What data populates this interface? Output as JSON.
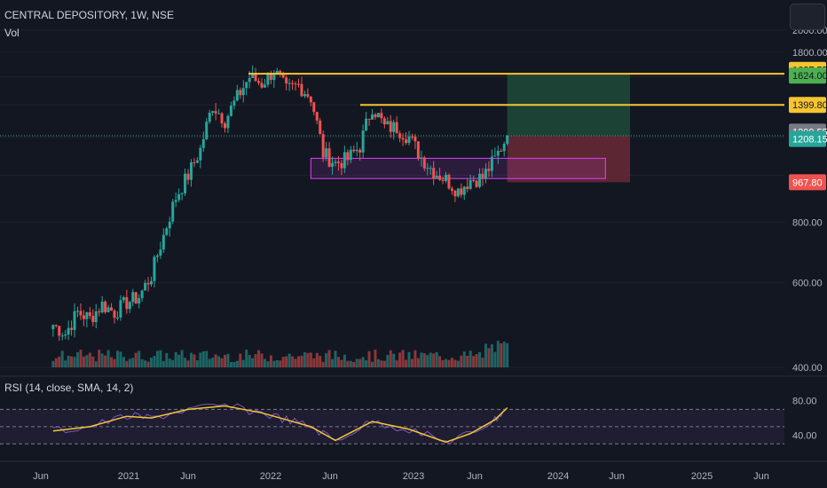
{
  "header": {
    "symbol_line": "CENTRAL DEPOSITORY, 1W, NSE",
    "volume_label": "Vol",
    "rsi_label": "RSI (14, close, SMA, 14, 2)"
  },
  "colors": {
    "background": "#131722",
    "up": "#26a69a",
    "down": "#ef5350",
    "level_line": "#f7c531",
    "rsi_line": "#7e57c2",
    "rsi_ma": "#f7c531",
    "box": "#e040fb",
    "target_zone": "#1f4a3a",
    "stop_zone": "#6a2a35"
  },
  "price_axis": {
    "labels": [
      "2000.00",
      "1800.00",
      "800.00",
      "600.00",
      "400.00"
    ],
    "badges": [
      {
        "text": "1627.55",
        "kind": "yellow"
      },
      {
        "text": "1624.00",
        "kind": "green"
      },
      {
        "text": "1399.80",
        "kind": "yellow"
      },
      {
        "text": "1209.55",
        "kind": "gray"
      },
      {
        "text": "1208.15",
        "kind": "teal"
      },
      {
        "text": "967.80",
        "kind": "red"
      }
    ]
  },
  "rsi_axis": {
    "labels": [
      "80.00",
      "40.00"
    ]
  },
  "time_axis": {
    "labels": [
      "Jun",
      "2021",
      "Jun",
      "2022",
      "Jun",
      "2023",
      "Jun",
      "2024",
      "Jun",
      "2025",
      "Jun"
    ]
  },
  "chart_data": {
    "type": "candlestick",
    "title": "CENTRAL DEPOSITORY, 1W, NSE",
    "y_scale": "log",
    "ylim": [
      400,
      2000
    ],
    "x_start": "2020-03",
    "x_end": "2025-09",
    "horizontal_levels": [
      1624.0,
      1399.8
    ],
    "last_price": 1208.15,
    "previous_close": 1209.55,
    "position": {
      "entry": 1208.15,
      "target": 1627.55,
      "stop": 967.8,
      "start": "2023-08",
      "end": "2024-06"
    },
    "support_zone": {
      "low": 985,
      "high": 1085,
      "start": "2022-04",
      "end": "2024-04"
    },
    "weekly_close_series": [
      {
        "date": "2020-07",
        "close": 490
      },
      {
        "date": "2020-08",
        "close": 470
      },
      {
        "date": "2020-09",
        "close": 520
      },
      {
        "date": "2020-10",
        "close": 505
      },
      {
        "date": "2020-11",
        "close": 540
      },
      {
        "date": "2020-12",
        "close": 520
      },
      {
        "date": "2021-01",
        "close": 545
      },
      {
        "date": "2021-02",
        "close": 560
      },
      {
        "date": "2021-03",
        "close": 620
      },
      {
        "date": "2021-04",
        "close": 750
      },
      {
        "date": "2021-05",
        "close": 900
      },
      {
        "date": "2021-06",
        "close": 1000
      },
      {
        "date": "2021-07",
        "close": 1130
      },
      {
        "date": "2021-08",
        "close": 1400
      },
      {
        "date": "2021-09",
        "close": 1300
      },
      {
        "date": "2021-10",
        "close": 1450
      },
      {
        "date": "2021-11",
        "close": 1600
      },
      {
        "date": "2021-12",
        "close": 1550
      },
      {
        "date": "2022-01",
        "close": 1650
      },
      {
        "date": "2022-02",
        "close": 1500
      },
      {
        "date": "2022-03",
        "close": 1540
      },
      {
        "date": "2022-04",
        "close": 1450
      },
      {
        "date": "2022-05",
        "close": 1110
      },
      {
        "date": "2022-06",
        "close": 1060
      },
      {
        "date": "2022-07",
        "close": 1080
      },
      {
        "date": "2022-08",
        "close": 1150
      },
      {
        "date": "2022-09",
        "close": 1390
      },
      {
        "date": "2022-10",
        "close": 1260
      },
      {
        "date": "2022-11",
        "close": 1255
      },
      {
        "date": "2022-12",
        "close": 1200
      },
      {
        "date": "2023-01",
        "close": 1090
      },
      {
        "date": "2023-02",
        "close": 1020
      },
      {
        "date": "2023-03",
        "close": 980
      },
      {
        "date": "2023-04",
        "close": 930
      },
      {
        "date": "2023-05",
        "close": 980
      },
      {
        "date": "2023-06",
        "close": 990
      },
      {
        "date": "2023-07",
        "close": 1080
      },
      {
        "date": "2023-08",
        "close": 1208.15
      }
    ],
    "rsi_series": [
      {
        "date": "2020-07",
        "rsi": 45
      },
      {
        "date": "2020-10",
        "rsi": 50
      },
      {
        "date": "2021-01",
        "rsi": 62
      },
      {
        "date": "2021-03",
        "rsi": 60
      },
      {
        "date": "2021-06",
        "rsi": 70
      },
      {
        "date": "2021-09",
        "rsi": 74
      },
      {
        "date": "2021-12",
        "rsi": 66
      },
      {
        "date": "2022-02",
        "rsi": 58
      },
      {
        "date": "2022-04",
        "rsi": 50
      },
      {
        "date": "2022-06",
        "rsi": 34
      },
      {
        "date": "2022-09",
        "rsi": 56
      },
      {
        "date": "2022-12",
        "rsi": 47
      },
      {
        "date": "2023-03",
        "rsi": 32
      },
      {
        "date": "2023-05",
        "rsi": 42
      },
      {
        "date": "2023-07",
        "rsi": 58
      },
      {
        "date": "2023-08",
        "rsi": 72
      }
    ],
    "rsi_bands": [
      70,
      50,
      30
    ],
    "rsi_ylim": [
      20,
      90
    ]
  }
}
